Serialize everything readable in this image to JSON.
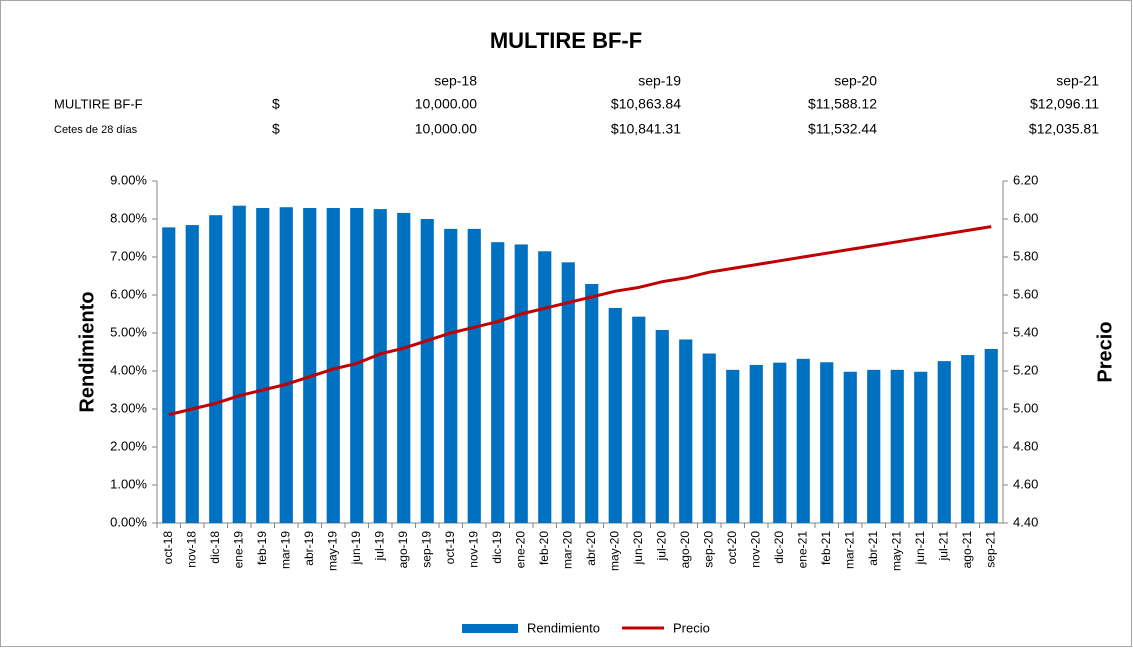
{
  "table": {
    "columns": [
      "sep-18",
      "sep-19",
      "sep-20",
      "sep-21"
    ],
    "rows": [
      {
        "name": "MULTIRE BF-F",
        "currency": "$",
        "values": [
          "10,000.00",
          "$10,863.84",
          "$11,588.12",
          "$12,096.11"
        ]
      },
      {
        "name": "Cetes de 28 días",
        "currency": "$",
        "values": [
          "10,000.00",
          "$10,841.31",
          "$11,532.44",
          "$12,035.81"
        ]
      }
    ]
  },
  "chart_data": {
    "type": "bar-line",
    "title": "MULTIRE BF-F",
    "y_label": "Rendimiento",
    "y2_label": "Precio",
    "categories": [
      "oct-18",
      "nov-18",
      "dic-18",
      "ene-19",
      "feb-19",
      "mar-19",
      "abr-19",
      "may-19",
      "jun-19",
      "jul-19",
      "ago-19",
      "sep-19",
      "oct-19",
      "nov-19",
      "dic-19",
      "ene-20",
      "feb-20",
      "mar-20",
      "abr-20",
      "may-20",
      "jun-20",
      "jul-20",
      "ago-20",
      "sep-20",
      "oct-20",
      "nov-20",
      "dic-20",
      "ene-21",
      "feb-21",
      "mar-21",
      "abr-21",
      "may-21",
      "jun-21",
      "jul-21",
      "ago-21",
      "sep-21"
    ],
    "series": [
      {
        "name": "Rendimiento",
        "type": "bar",
        "color": "#0070c0",
        "axis": "y",
        "values": [
          7.78,
          7.84,
          8.1,
          8.35,
          8.29,
          8.31,
          8.29,
          8.29,
          8.29,
          8.26,
          8.16,
          8.0,
          7.74,
          7.74,
          7.39,
          7.33,
          7.15,
          6.86,
          6.29,
          5.66,
          5.43,
          5.08,
          4.83,
          4.46,
          4.03,
          4.16,
          4.22,
          4.32,
          4.23,
          3.98,
          4.03,
          4.03,
          3.98,
          4.26,
          4.42,
          4.58
        ]
      },
      {
        "name": "Precio",
        "type": "line",
        "color": "#c00000",
        "axis": "y2",
        "values": [
          4.97,
          5.0,
          5.03,
          5.07,
          5.1,
          5.13,
          5.17,
          5.21,
          5.24,
          5.29,
          5.32,
          5.36,
          5.4,
          5.43,
          5.46,
          5.5,
          5.53,
          5.56,
          5.59,
          5.62,
          5.64,
          5.67,
          5.69,
          5.72,
          5.74,
          5.76,
          5.78,
          5.8,
          5.82,
          5.84,
          5.86,
          5.88,
          5.9,
          5.92,
          5.94,
          5.96
        ]
      }
    ],
    "ylim": [
      0,
      9
    ],
    "yticks": [
      {
        "value": 0,
        "label": "0.00%"
      },
      {
        "value": 1,
        "label": "1.00%"
      },
      {
        "value": 2,
        "label": "2.00%"
      },
      {
        "value": 3,
        "label": "3.00%"
      },
      {
        "value": 4,
        "label": "4.00%"
      },
      {
        "value": 5,
        "label": "5.00%"
      },
      {
        "value": 6,
        "label": "6.00%"
      },
      {
        "value": 7,
        "label": "7.00%"
      },
      {
        "value": 8,
        "label": "8.00%"
      },
      {
        "value": 9,
        "label": "9.00%"
      }
    ],
    "y2lim": [
      4.4,
      6.2
    ],
    "y2ticks": [
      {
        "value": 4.4,
        "label": "4.40"
      },
      {
        "value": 4.6,
        "label": "4.60"
      },
      {
        "value": 4.8,
        "label": "4.80"
      },
      {
        "value": 5.0,
        "label": "5.00"
      },
      {
        "value": 5.2,
        "label": "5.20"
      },
      {
        "value": 5.4,
        "label": "5.40"
      },
      {
        "value": 5.6,
        "label": "5.60"
      },
      {
        "value": 5.8,
        "label": "5.80"
      },
      {
        "value": 6.0,
        "label": "6.00"
      },
      {
        "value": 6.2,
        "label": "6.20"
      }
    ],
    "legend": "bottom"
  }
}
